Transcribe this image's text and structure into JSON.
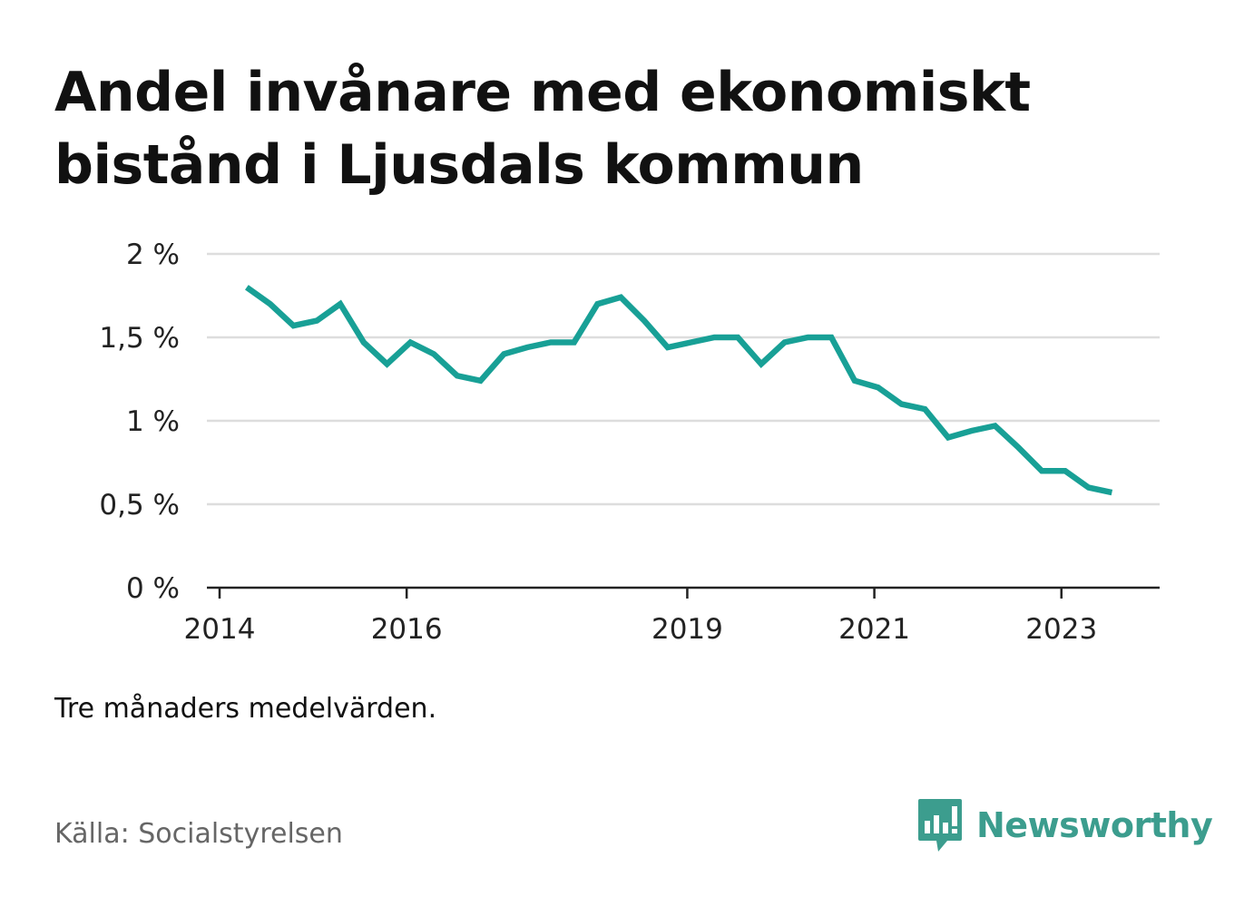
{
  "title": "Andel invånare med ekonomiskt bistånd i Ljusdals kommun",
  "note": "Tre månaders medelvärden.",
  "source": "Källa: Socialstyrelsen",
  "brand": {
    "name": "Newsworthy",
    "icon": "newsworthy-logo-icon",
    "color": "#3c9d8e"
  },
  "colors": {
    "line": "#18a096",
    "grid": "#dddddd",
    "axis": "#222222",
    "text": "#222222"
  },
  "chart_data": {
    "type": "line",
    "title": "Andel invånare med ekonomiskt bistånd i Ljusdals kommun",
    "xlabel": "",
    "ylabel": "",
    "ylim": [
      0,
      2
    ],
    "yticks": [
      0,
      0.5,
      1,
      1.5,
      2
    ],
    "ytick_labels": [
      "0 %",
      "0,5 %",
      "1 %",
      "1,5 %",
      "2 %"
    ],
    "xticks": [
      2014,
      2016,
      2019,
      2021,
      2023
    ],
    "xtick_labels": [
      "2014",
      "2016",
      "2019",
      "2021",
      "2023"
    ],
    "xlim": [
      2014,
      2024.05
    ],
    "grid": true,
    "series": [
      {
        "values": [
          [
            2014.29,
            1.8
          ],
          [
            2014.54,
            1.7
          ],
          [
            2014.79,
            1.57
          ],
          [
            2015.04,
            1.6
          ],
          [
            2015.29,
            1.7
          ],
          [
            2015.54,
            1.47
          ],
          [
            2015.79,
            1.34
          ],
          [
            2016.04,
            1.47
          ],
          [
            2016.29,
            1.4
          ],
          [
            2016.54,
            1.27
          ],
          [
            2016.79,
            1.24
          ],
          [
            2017.04,
            1.4
          ],
          [
            2017.29,
            1.44
          ],
          [
            2017.54,
            1.47
          ],
          [
            2017.79,
            1.47
          ],
          [
            2018.04,
            1.7
          ],
          [
            2018.29,
            1.74
          ],
          [
            2018.54,
            1.6
          ],
          [
            2018.79,
            1.44
          ],
          [
            2019.04,
            1.47
          ],
          [
            2019.29,
            1.5
          ],
          [
            2019.54,
            1.5
          ],
          [
            2019.79,
            1.34
          ],
          [
            2020.04,
            1.47
          ],
          [
            2020.29,
            1.5
          ],
          [
            2020.54,
            1.5
          ],
          [
            2020.79,
            1.24
          ],
          [
            2021.04,
            1.2
          ],
          [
            2021.29,
            1.1
          ],
          [
            2021.54,
            1.07
          ],
          [
            2021.79,
            0.9
          ],
          [
            2022.04,
            0.94
          ],
          [
            2022.29,
            0.97
          ],
          [
            2022.54,
            0.84
          ],
          [
            2022.79,
            0.7
          ],
          [
            2023.04,
            0.7
          ],
          [
            2023.29,
            0.6
          ],
          [
            2023.54,
            0.57
          ]
        ]
      }
    ]
  }
}
